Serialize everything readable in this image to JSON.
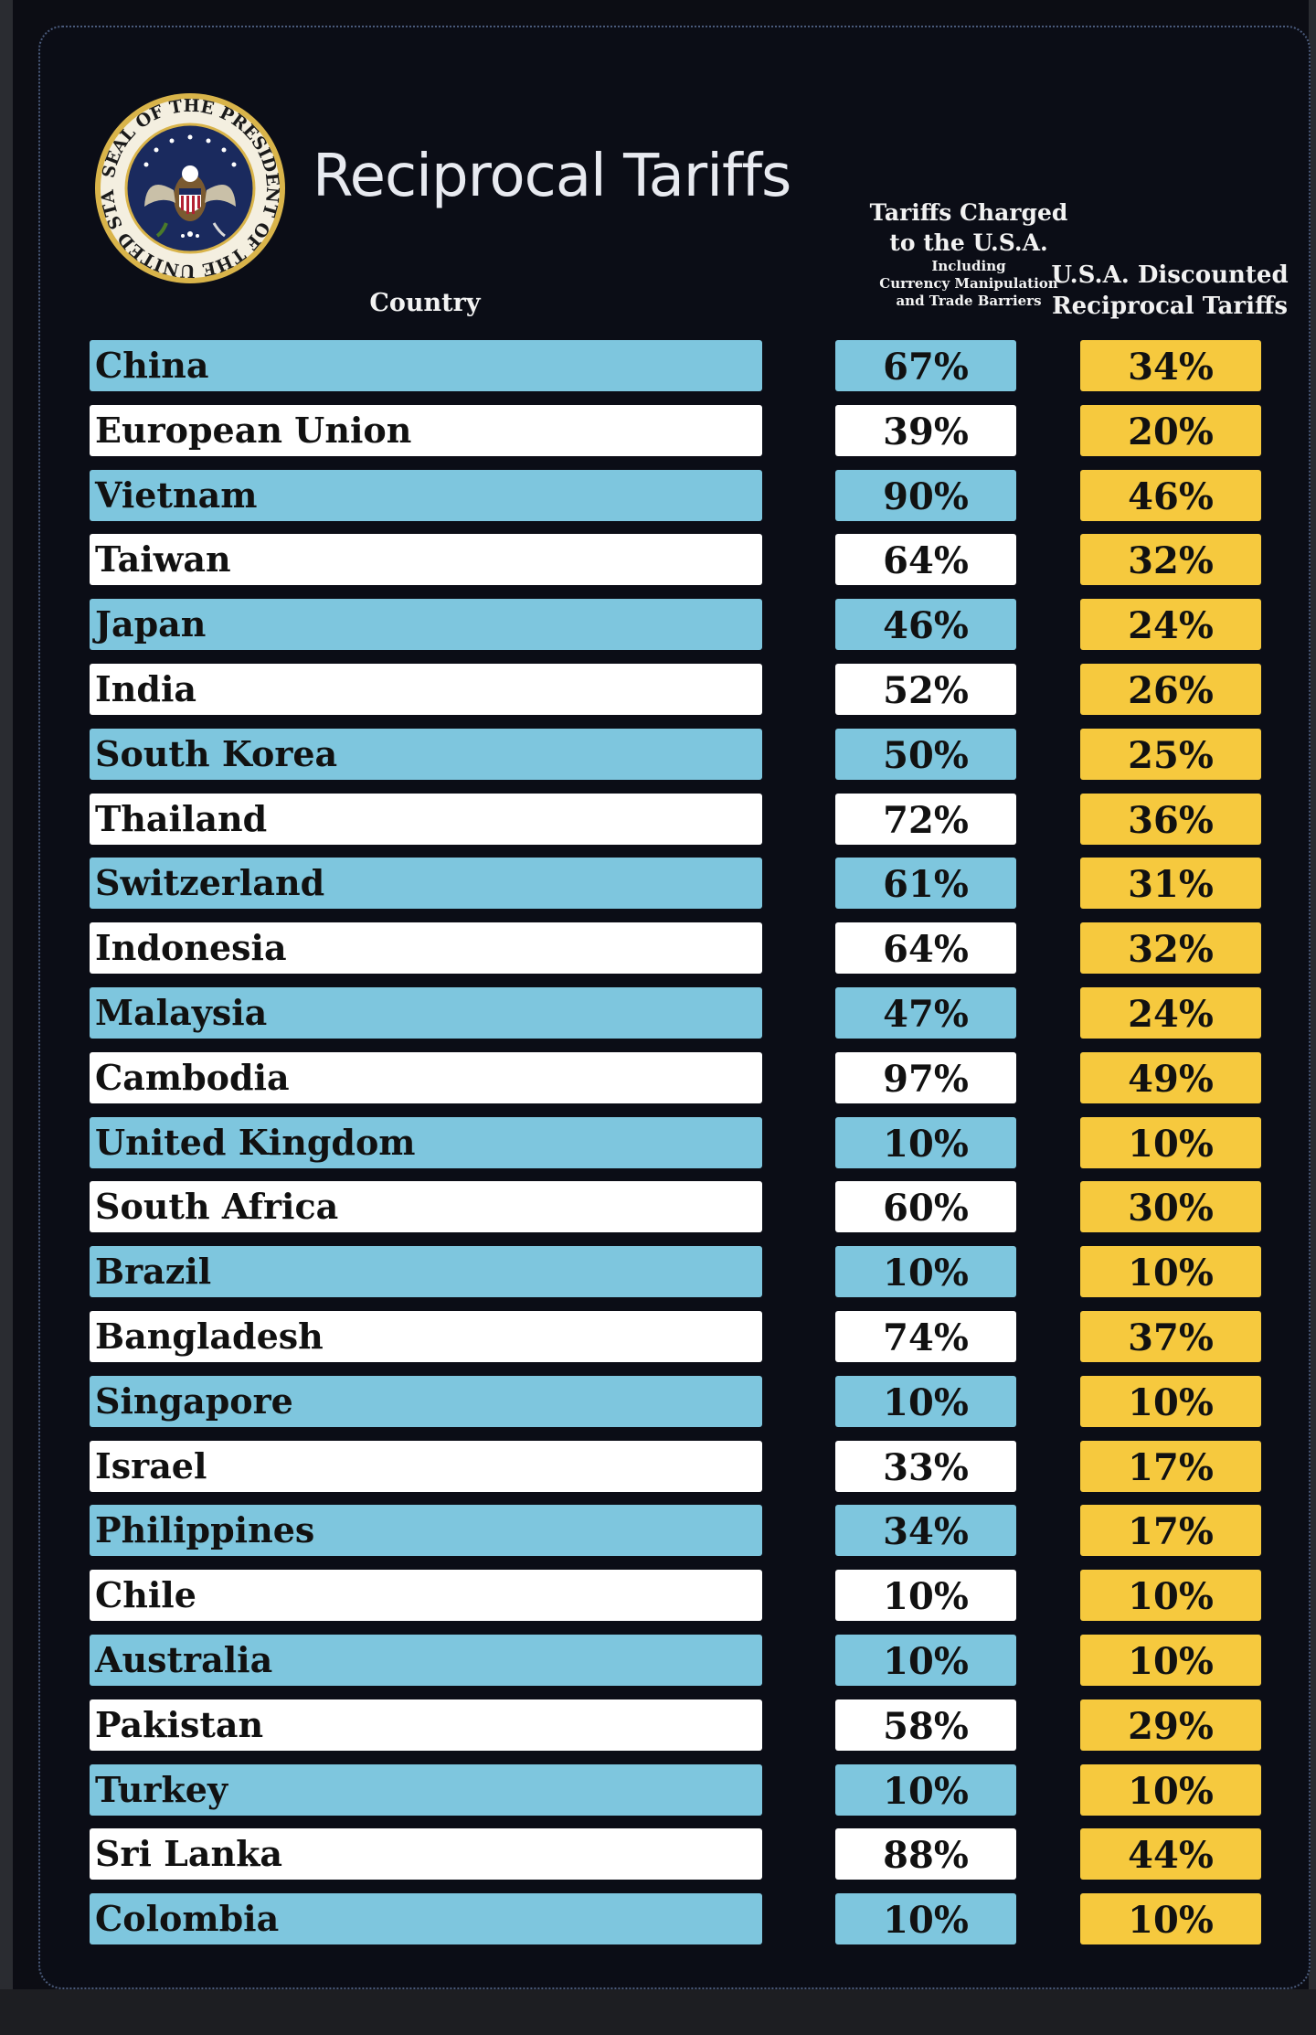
{
  "title": "Reciprocal Tariffs",
  "seal": {
    "text": "SEAL OF THE PRESIDENT OF THE UNITED STATES"
  },
  "headers": {
    "country": "Country",
    "charged_line1": "Tariffs Charged",
    "charged_line2": "to the U.S.A.",
    "charged_small1": "Including",
    "charged_small2": "Currency Manipulation",
    "charged_small3": "and Trade Barriers",
    "discount_line1": "U.S.A. Discounted",
    "discount_line2": "Reciprocal Tariffs"
  },
  "colors": {
    "row_blue": "#7ec6de",
    "row_white": "#ffffff",
    "discount_yellow": "#f6c93e",
    "background": "#0b0d16"
  },
  "chart_data": {
    "type": "table",
    "title": "Reciprocal Tariffs",
    "columns": [
      "Country",
      "Tariffs Charged to the U.S.A. Including Currency Manipulation and Trade Barriers",
      "U.S.A. Discounted Reciprocal Tariffs"
    ],
    "rows": [
      {
        "country": "China",
        "charged": "67%",
        "discounted": "34%"
      },
      {
        "country": "European Union",
        "charged": "39%",
        "discounted": "20%"
      },
      {
        "country": "Vietnam",
        "charged": "90%",
        "discounted": "46%"
      },
      {
        "country": "Taiwan",
        "charged": "64%",
        "discounted": "32%"
      },
      {
        "country": "Japan",
        "charged": "46%",
        "discounted": "24%"
      },
      {
        "country": "India",
        "charged": "52%",
        "discounted": "26%"
      },
      {
        "country": "South Korea",
        "charged": "50%",
        "discounted": "25%"
      },
      {
        "country": "Thailand",
        "charged": "72%",
        "discounted": "36%"
      },
      {
        "country": "Switzerland",
        "charged": "61%",
        "discounted": "31%"
      },
      {
        "country": "Indonesia",
        "charged": "64%",
        "discounted": "32%"
      },
      {
        "country": "Malaysia",
        "charged": "47%",
        "discounted": "24%"
      },
      {
        "country": "Cambodia",
        "charged": "97%",
        "discounted": "49%"
      },
      {
        "country": "United Kingdom",
        "charged": "10%",
        "discounted": "10%"
      },
      {
        "country": "South Africa",
        "charged": "60%",
        "discounted": "30%"
      },
      {
        "country": "Brazil",
        "charged": "10%",
        "discounted": "10%"
      },
      {
        "country": "Bangladesh",
        "charged": "74%",
        "discounted": "37%"
      },
      {
        "country": "Singapore",
        "charged": "10%",
        "discounted": "10%"
      },
      {
        "country": "Israel",
        "charged": "33%",
        "discounted": "17%"
      },
      {
        "country": "Philippines",
        "charged": "34%",
        "discounted": "17%"
      },
      {
        "country": "Chile",
        "charged": "10%",
        "discounted": "10%"
      },
      {
        "country": "Australia",
        "charged": "10%",
        "discounted": "10%"
      },
      {
        "country": "Pakistan",
        "charged": "58%",
        "discounted": "29%"
      },
      {
        "country": "Turkey",
        "charged": "10%",
        "discounted": "10%"
      },
      {
        "country": "Sri Lanka",
        "charged": "88%",
        "discounted": "44%"
      },
      {
        "country": "Colombia",
        "charged": "10%",
        "discounted": "10%"
      }
    ]
  }
}
